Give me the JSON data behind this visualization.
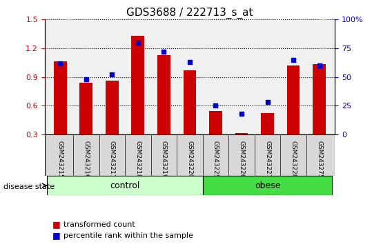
{
  "title": "GDS3688 / 222713_s_at",
  "samples": [
    "GSM243215",
    "GSM243216",
    "GSM243217",
    "GSM243218",
    "GSM243219",
    "GSM243220",
    "GSM243225",
    "GSM243226",
    "GSM243227",
    "GSM243228",
    "GSM243275"
  ],
  "transformed_count": [
    1.06,
    0.84,
    0.86,
    1.33,
    1.13,
    0.97,
    0.54,
    0.31,
    0.52,
    1.02,
    1.03
  ],
  "percentile_rank": [
    62,
    48,
    52,
    80,
    72,
    63,
    25,
    18,
    28,
    65,
    60
  ],
  "ylim_left": [
    0.3,
    1.5
  ],
  "ylim_right": [
    0,
    100
  ],
  "yticks_left": [
    0.3,
    0.6,
    0.9,
    1.2,
    1.5
  ],
  "yticks_right": [
    0,
    25,
    50,
    75,
    100
  ],
  "yticklabels_right": [
    "0",
    "25",
    "50",
    "75",
    "100%"
  ],
  "bar_color": "#cc0000",
  "dot_color": "#0000cc",
  "bar_bottom": 0.3,
  "group_labels": [
    "control",
    "obese"
  ],
  "group_ranges": [
    [
      0,
      5
    ],
    [
      6,
      10
    ]
  ],
  "group_colors": [
    "#ccffcc",
    "#44dd44"
  ],
  "disease_state_label": "disease state",
  "legend_items": [
    "transformed count",
    "percentile rank within the sample"
  ],
  "legend_colors": [
    "#cc0000",
    "#0000cc"
  ],
  "background_color": "#ffffff",
  "plot_bg_color": "#f0f0f0",
  "grid_color": "#000000",
  "title_fontsize": 11,
  "axis_fontsize": 9,
  "tick_fontsize": 8
}
